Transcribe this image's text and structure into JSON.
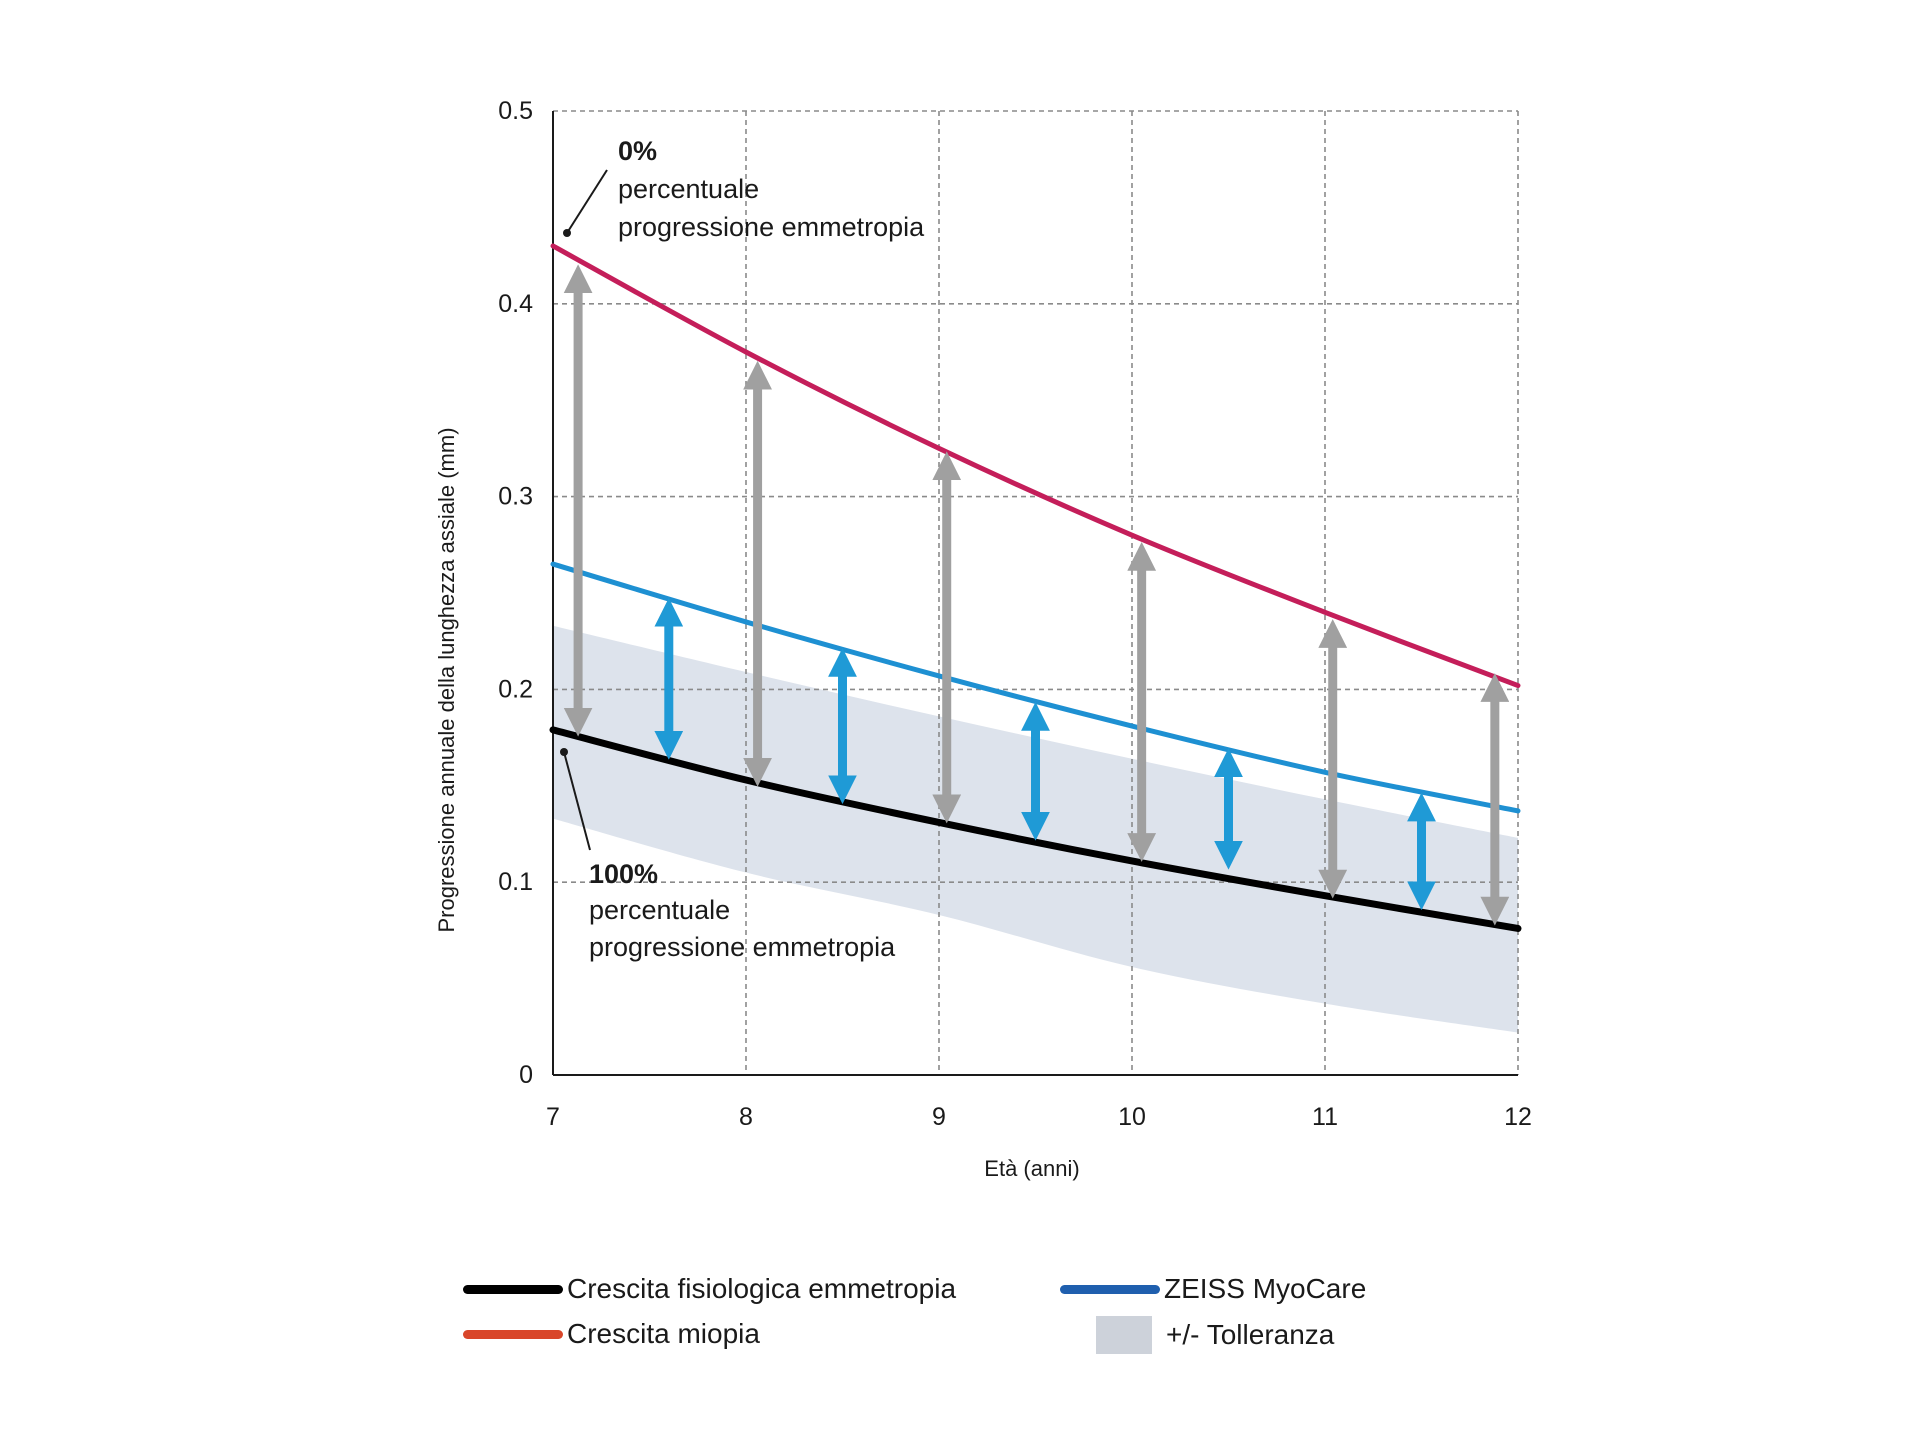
{
  "chart_data": {
    "type": "line",
    "title": "",
    "xlabel": "Età (anni)",
    "ylabel": "Progressione annuale della lunghezza assiale (mm)",
    "xlim": [
      7,
      12
    ],
    "ylim": [
      0,
      0.5
    ],
    "x_ticks": [
      "7",
      "8",
      "9",
      "10",
      "11",
      "12"
    ],
    "y_ticks": [
      "0",
      "0.1",
      "0.2",
      "0.3",
      "0.4",
      "0.5"
    ],
    "grid": true,
    "legend_position": "bottom",
    "x": [
      7,
      8,
      9,
      10,
      11,
      12
    ],
    "series": [
      {
        "name": "Crescita fisiologica emmetropia",
        "color": "#000000",
        "values": [
          0.179,
          0.153,
          0.131,
          0.111,
          0.093,
          0.076
        ]
      },
      {
        "name": "Crescita miopia",
        "color": "#c41e5a",
        "values": [
          0.43,
          0.375,
          0.325,
          0.28,
          0.24,
          0.202
        ]
      },
      {
        "name": "ZEISS MyoCare",
        "color": "#1e90d2",
        "values": [
          0.265,
          0.235,
          0.207,
          0.181,
          0.157,
          0.137
        ]
      }
    ],
    "tolerance_band": {
      "name": "+/- Tolleranza",
      "color": "#dde3ec",
      "x": [
        7,
        8,
        9,
        10,
        11,
        12
      ],
      "upper": [
        0.233,
        0.209,
        0.186,
        0.164,
        0.143,
        0.123
      ],
      "lower": [
        0.133,
        0.105,
        0.083,
        0.056,
        0.037,
        0.022
      ]
    },
    "gray_arrows": {
      "color": "#a0a0a0",
      "items": [
        {
          "x": 7.13,
          "from": 0.183,
          "to": 0.413
        },
        {
          "x": 8.06,
          "from": 0.157,
          "to": 0.363
        },
        {
          "x": 9.04,
          "from": 0.138,
          "to": 0.316
        },
        {
          "x": 10.05,
          "from": 0.118,
          "to": 0.269
        },
        {
          "x": 11.04,
          "from": 0.099,
          "to": 0.229
        },
        {
          "x": 11.88,
          "from": 0.085,
          "to": 0.201
        }
      ]
    },
    "blue_arrows": {
      "color": "#1f9ad6",
      "items": [
        {
          "x": 7.6,
          "from": 0.171,
          "to": 0.24
        },
        {
          "x": 8.5,
          "from": 0.148,
          "to": 0.214
        },
        {
          "x": 9.5,
          "from": 0.129,
          "to": 0.186
        },
        {
          "x": 10.5,
          "from": 0.114,
          "to": 0.162
        },
        {
          "x": 11.5,
          "from": 0.093,
          "to": 0.139
        }
      ]
    },
    "annotations": [
      {
        "bold": "0%",
        "line1": "percentuale",
        "line2": "progressione emmetropia"
      },
      {
        "bold": "100%",
        "line1": "percentuale",
        "line2": "progressione emmetropia"
      }
    ]
  },
  "legend": [
    {
      "label": "Crescita fisiologica emmetropia",
      "color": "#000000"
    },
    {
      "label": "ZEISS MyoCare",
      "color": "#1f5fae"
    },
    {
      "label": "Crescita miopia",
      "color": "#d9462a"
    },
    {
      "label": "+/- Tolleranza",
      "color": "#cdd2da"
    }
  ]
}
